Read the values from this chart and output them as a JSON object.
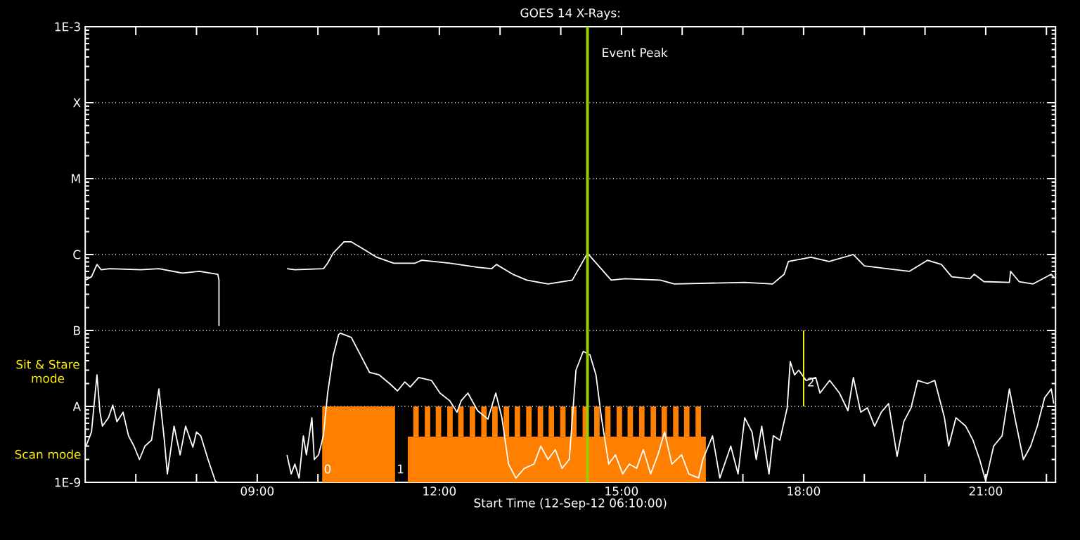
{
  "chart_data": {
    "type": "line",
    "title": "GOES 14 X-Rays:",
    "xlabel": "Start Time (12-Sep-12 06:10:00)",
    "log": "y",
    "grid": "y",
    "xlim": [
      6.1667,
      22.15
    ],
    "ylim": [
      1e-09,
      0.001
    ],
    "xticks": [
      {
        "value": 7,
        "label": null
      },
      {
        "value": 8,
        "label": null
      },
      {
        "value": 9,
        "label": "09:00"
      },
      {
        "value": 10,
        "label": null
      },
      {
        "value": 11,
        "label": null
      },
      {
        "value": 12,
        "label": "12:00"
      },
      {
        "value": 13,
        "label": null
      },
      {
        "value": 14,
        "label": null
      },
      {
        "value": 15,
        "label": "15:00"
      },
      {
        "value": 16,
        "label": null
      },
      {
        "value": 17,
        "label": null
      },
      {
        "value": 18,
        "label": "18:00"
      },
      {
        "value": 19,
        "label": null
      },
      {
        "value": 20,
        "label": null
      },
      {
        "value": 21,
        "label": "21:00"
      },
      {
        "value": 22,
        "label": null
      }
    ],
    "yticks": [
      {
        "value": 1e-09,
        "label": "1E-9"
      },
      {
        "value": 1e-08,
        "label": "A"
      },
      {
        "value": 1e-07,
        "label": "B"
      },
      {
        "value": 1e-06,
        "label": "C"
      },
      {
        "value": 1e-05,
        "label": "M"
      },
      {
        "value": 0.0001,
        "label": "X"
      },
      {
        "value": 0.001,
        "label": "1E-3"
      }
    ],
    "ref_lines": [
      {
        "axis": "x",
        "value": 14.44,
        "label": "Event Peak",
        "color": "#99cc00"
      }
    ],
    "annotations": [
      "Sit & Stare mode",
      "Scan mode",
      {
        "text": "0",
        "x": 10.16,
        "y": 1.5e-09
      },
      {
        "text": "1",
        "x": 11.36,
        "y": 1.5e-09
      },
      {
        "text": "2",
        "x": 18.12,
        "y": 2.1e-08
      }
    ],
    "series": [
      {
        "type": "area",
        "color": "#ff8000",
        "x": [
          10.07,
          10.07,
          11.27,
          11.27,
          11.48,
          11.48,
          11.57,
          11.57,
          11.66,
          11.66,
          11.76,
          11.76,
          11.85,
          11.85,
          11.94,
          11.94,
          12.03,
          12.03,
          12.13,
          12.13,
          12.22,
          12.22,
          12.31,
          12.31,
          12.4,
          12.4,
          12.5,
          12.5,
          12.59,
          12.59,
          12.69,
          12.69,
          12.78,
          12.78,
          12.87,
          12.87,
          12.96,
          12.96,
          13.06,
          13.06,
          13.15,
          13.15,
          13.24,
          13.24,
          13.33,
          13.33,
          13.43,
          13.43,
          13.52,
          13.52,
          13.62,
          13.62,
          13.71,
          13.71,
          13.8,
          13.8,
          13.89,
          13.89,
          13.99,
          13.99,
          14.08,
          14.08,
          14.17,
          14.17,
          14.26,
          14.26,
          14.36,
          14.36,
          14.45,
          14.45,
          14.55,
          14.55,
          14.64,
          14.64,
          14.73,
          14.73,
          14.82,
          14.82,
          14.92,
          14.92,
          15.01,
          15.01,
          15.1,
          15.1,
          15.19,
          15.19,
          15.29,
          15.29,
          15.38,
          15.38,
          15.48,
          15.48,
          15.57,
          15.57,
          15.66,
          15.66,
          15.75,
          15.75,
          15.85,
          15.85,
          15.94,
          15.94,
          16.03,
          16.03,
          16.12,
          16.12,
          16.22,
          16.22,
          16.31,
          16.31,
          16.39,
          16.39
        ],
        "values": [
          1e-09,
          1e-08,
          1e-08,
          1e-09,
          1e-09,
          4e-09,
          4e-09,
          1e-08,
          1e-08,
          4e-09,
          4e-09,
          1e-08,
          1e-08,
          4e-09,
          4e-09,
          1e-08,
          1e-08,
          4e-09,
          4e-09,
          1e-08,
          1e-08,
          4e-09,
          4e-09,
          1e-08,
          1e-08,
          4e-09,
          4e-09,
          1e-08,
          1e-08,
          4e-09,
          4e-09,
          1e-08,
          1e-08,
          4e-09,
          4e-09,
          1e-08,
          1e-08,
          4e-09,
          4e-09,
          1e-08,
          1e-08,
          4e-09,
          4e-09,
          1e-08,
          1e-08,
          4e-09,
          4e-09,
          1e-08,
          1e-08,
          4e-09,
          4e-09,
          1e-08,
          1e-08,
          4e-09,
          4e-09,
          1e-08,
          1e-08,
          4e-09,
          4e-09,
          1e-08,
          1e-08,
          4e-09,
          4e-09,
          1e-08,
          1e-08,
          4e-09,
          4e-09,
          1e-08,
          1e-08,
          4e-09,
          4e-09,
          1e-08,
          1e-08,
          4e-09,
          4e-09,
          1e-08,
          1e-08,
          4e-09,
          4e-09,
          1e-08,
          1e-08,
          4e-09,
          4e-09,
          1e-08,
          1e-08,
          4e-09,
          4e-09,
          1e-08,
          1e-08,
          4e-09,
          4e-09,
          1e-08,
          1e-08,
          4e-09,
          4e-09,
          1e-08,
          1e-08,
          4e-09,
          4e-09,
          1e-08,
          1e-08,
          4e-09,
          4e-09,
          1e-08,
          1e-08,
          4e-09,
          4e-09,
          1e-08,
          1e-08,
          4e-09,
          4e-09,
          1e-09
        ]
      },
      {
        "type": "line",
        "color": "#ffffff",
        "x": [
          6.17,
          6.27,
          6.36,
          6.43,
          6.57,
          7.08,
          7.38,
          7.77,
          8.05,
          8.35,
          8.37,
          8.37,
          8.4,
          9.49,
          9.62,
          10.09,
          10.16,
          10.25,
          10.43,
          10.55,
          10.74,
          10.97,
          11.25,
          11.6,
          11.71,
          12.18,
          12.63,
          12.86,
          12.94,
          13.21,
          13.44,
          13.79,
          14.19,
          14.44,
          14.83,
          15.06,
          15.64,
          15.87,
          17.03,
          17.49,
          17.68,
          17.75,
          18.12,
          18.42,
          18.82,
          19.0,
          19.74,
          20.04,
          20.27,
          20.44,
          20.74,
          20.81,
          20.97,
          21.39,
          21.41,
          21.55,
          21.78,
          22.08,
          22.12
        ],
        "values": [
          4.6e-07,
          5.1e-07,
          7.4e-07,
          6.3e-07,
          6.5e-07,
          6.3e-07,
          6.5e-07,
          5.7e-07,
          6e-07,
          5.5e-07,
          4.6e-07,
          1.14e-07,
          null,
          6.5e-07,
          6.3e-07,
          6.5e-07,
          7.7e-07,
          1.04e-06,
          1.47e-06,
          1.47e-06,
          1.19e-06,
          9.2e-07,
          7.7e-07,
          7.7e-07,
          8.4e-07,
          7.7e-07,
          6.8e-07,
          6.5e-07,
          7.4e-07,
          5.5e-07,
          4.6e-07,
          4.1e-07,
          4.6e-07,
          1.04e-06,
          4.6e-07,
          4.8e-07,
          4.6e-07,
          4.1e-07,
          4.3e-07,
          4.1e-07,
          5.5e-07,
          8.1e-07,
          9.2e-07,
          8.1e-07,
          1e-06,
          7.1e-07,
          6e-07,
          8.4e-07,
          7.4e-07,
          5.1e-07,
          4.8e-07,
          5.5e-07,
          4.4e-07,
          4.3e-07,
          6e-07,
          4.4e-07,
          4.1e-07,
          5.5e-07,
          5.1e-07
        ]
      },
      {
        "type": "line",
        "color": "#ffffff",
        "x": [
          6.18,
          6.27,
          6.36,
          6.41,
          6.45,
          6.55,
          6.62,
          6.69,
          6.79,
          6.88,
          6.97,
          7.06,
          7.15,
          7.26,
          7.38,
          7.47,
          7.52,
          7.63,
          7.73,
          7.82,
          7.94,
          8.0,
          8.07,
          8.19,
          8.31,
          8.35,
          8.5,
          9.49,
          9.56,
          9.62,
          9.69,
          9.76,
          9.81,
          9.9,
          9.94,
          10.01,
          10.09,
          10.16,
          10.25,
          10.34,
          10.37,
          10.55,
          10.71,
          10.85,
          11.01,
          11.18,
          11.31,
          11.43,
          11.52,
          11.66,
          11.87,
          12.01,
          12.17,
          12.29,
          12.36,
          12.47,
          12.63,
          12.8,
          12.93,
          13.03,
          13.14,
          13.26,
          13.4,
          13.56,
          13.67,
          13.79,
          13.91,
          14.02,
          14.14,
          14.25,
          14.37,
          14.48,
          14.58,
          14.67,
          14.79,
          14.9,
          15.02,
          15.13,
          15.25,
          15.36,
          15.48,
          15.6,
          15.71,
          15.83,
          15.99,
          16.11,
          16.27,
          16.34,
          16.5,
          16.62,
          16.8,
          16.92,
          17.03,
          17.15,
          17.22,
          17.31,
          17.43,
          17.5,
          17.61,
          17.73,
          17.78,
          17.85,
          17.92,
          18.04,
          18.2,
          18.27,
          18.43,
          18.59,
          18.73,
          18.82,
          18.94,
          19.05,
          19.17,
          19.28,
          19.4,
          19.54,
          19.65,
          19.77,
          19.88,
          20.04,
          20.16,
          20.32,
          20.39,
          20.51,
          20.67,
          20.79,
          20.9,
          21.0,
          21.13,
          21.27,
          21.39,
          21.48,
          21.62,
          21.74,
          21.85,
          21.97,
          22.08,
          22.12
        ],
        "values": [
          3e-09,
          4.6e-09,
          2.6e-08,
          8.4e-09,
          5.5e-09,
          7.1e-09,
          1.04e-08,
          6.3e-09,
          8.4e-09,
          4.1e-09,
          3e-09,
          2e-09,
          3e-09,
          3.6e-09,
          1.7e-08,
          3.6e-09,
          1.29e-09,
          5.5e-09,
          2.3e-09,
          5.5e-09,
          2.9e-09,
          4.6e-09,
          4.1e-09,
          2e-09,
          1.04e-09,
          1e-09,
          null,
          2.3e-09,
          1.29e-09,
          1.74e-09,
          1.14e-09,
          4.1e-09,
          2.3e-09,
          7.1e-09,
          2e-09,
          2.3e-09,
          4.1e-09,
          1.5e-08,
          4.6e-08,
          8.8e-08,
          9.2e-08,
          8.1e-08,
          4.6e-08,
          2.8e-08,
          2.6e-08,
          2e-08,
          1.6e-08,
          2.1e-08,
          1.8e-08,
          2.4e-08,
          2.2e-08,
          1.5e-08,
          1.19e-08,
          8.4e-09,
          1.19e-08,
          1.5e-08,
          8.8e-09,
          6.8e-09,
          1.5e-08,
          7.1e-09,
          1.74e-09,
          1.14e-09,
          1.53e-09,
          1.74e-09,
          3e-09,
          2e-09,
          2.7e-09,
          1.53e-09,
          2e-09,
          3e-08,
          5.3e-08,
          4.8e-08,
          2.6e-08,
          7.1e-09,
          1.74e-09,
          2.3e-09,
          1.29e-09,
          1.74e-09,
          1.53e-09,
          2.7e-09,
          1.29e-09,
          2.3e-09,
          4.6e-09,
          1.74e-09,
          2.3e-09,
          1.29e-09,
          1.14e-09,
          2e-09,
          4.1e-09,
          1.14e-09,
          3e-09,
          1.29e-09,
          7.1e-09,
          4.6e-09,
          2e-09,
          5.5e-09,
          1.29e-09,
          4.1e-09,
          3.6e-09,
          9.6e-09,
          3.9e-08,
          2.6e-08,
          3e-08,
          2.2e-08,
          2.4e-08,
          1.5e-08,
          2.2e-08,
          1.5e-08,
          8.8e-09,
          2.4e-08,
          8.4e-09,
          9.6e-09,
          5.5e-09,
          8.4e-09,
          1.09e-08,
          2.2e-09,
          6.3e-09,
          9.6e-09,
          2.2e-08,
          2e-08,
          2.2e-08,
          7.1e-09,
          3e-09,
          7.1e-09,
          5.5e-09,
          3.6e-09,
          2e-09,
          1.04e-09,
          3e-09,
          4.1e-09,
          1.7e-08,
          7.1e-09,
          2e-09,
          3e-09,
          5.5e-09,
          1.3e-08,
          1.7e-08,
          1.09e-08
        ]
      },
      {
        "type": "line",
        "color": "#ffff00",
        "x": [
          18.0,
          18.0
        ],
        "values": [
          1e-07,
          1e-08
        ]
      }
    ]
  }
}
